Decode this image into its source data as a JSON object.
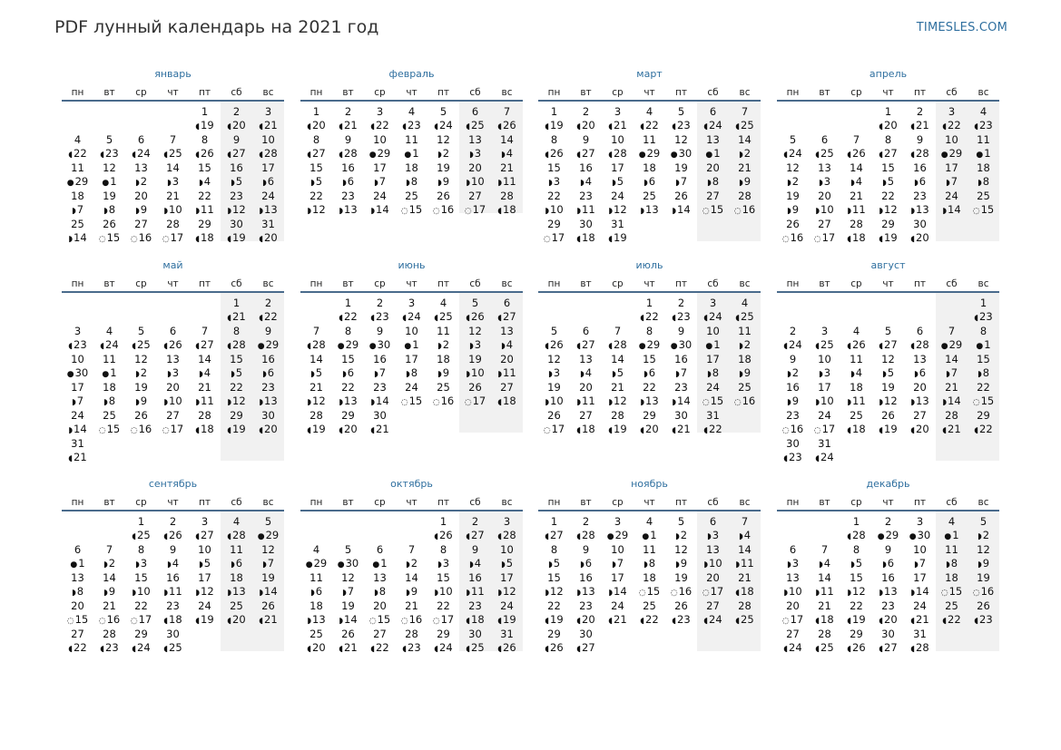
{
  "header": {
    "title": "PDF лунный календарь на 2021 год",
    "site": "TIMESLES.COM"
  },
  "weekday_labels": [
    "пн",
    "вт",
    "ср",
    "чт",
    "пт",
    "сб",
    "вс"
  ],
  "phase_icons": {
    "new": "●",
    "waxing": "◗",
    "full": "◌",
    "waning": "◖"
  },
  "months": [
    {
      "name": "январь",
      "offset": 4,
      "days": 31,
      "lunar": [
        19,
        20,
        21,
        22,
        23,
        24,
        25,
        26,
        27,
        28,
        29,
        1,
        2,
        3,
        4,
        5,
        6,
        7,
        8,
        9,
        10,
        11,
        12,
        13,
        14,
        15,
        16,
        17,
        18,
        19,
        20
      ]
    },
    {
      "name": "февраль",
      "offset": 0,
      "days": 28,
      "lunar": [
        20,
        21,
        22,
        23,
        24,
        25,
        26,
        27,
        28,
        29,
        1,
        2,
        3,
        4,
        5,
        6,
        7,
        8,
        9,
        10,
        11,
        12,
        13,
        14,
        15,
        16,
        17,
        18
      ]
    },
    {
      "name": "март",
      "offset": 0,
      "days": 31,
      "lunar": [
        19,
        20,
        21,
        22,
        23,
        24,
        25,
        26,
        27,
        28,
        29,
        30,
        1,
        2,
        3,
        4,
        5,
        6,
        7,
        8,
        9,
        10,
        11,
        12,
        13,
        14,
        15,
        16,
        17,
        18,
        19
      ]
    },
    {
      "name": "апрель",
      "offset": 3,
      "days": 30,
      "lunar": [
        20,
        21,
        22,
        23,
        24,
        25,
        26,
        27,
        28,
        29,
        1,
        2,
        3,
        4,
        5,
        6,
        7,
        8,
        9,
        10,
        11,
        12,
        13,
        14,
        15,
        16,
        17,
        18,
        19,
        20
      ]
    },
    {
      "name": "май",
      "offset": 5,
      "days": 31,
      "lunar": [
        21,
        22,
        23,
        24,
        25,
        26,
        27,
        28,
        29,
        30,
        1,
        2,
        3,
        4,
        5,
        6,
        7,
        8,
        9,
        10,
        11,
        12,
        13,
        14,
        15,
        16,
        17,
        18,
        19,
        20,
        21
      ]
    },
    {
      "name": "июнь",
      "offset": 1,
      "days": 30,
      "lunar": [
        22,
        23,
        24,
        25,
        26,
        27,
        28,
        29,
        30,
        1,
        2,
        3,
        4,
        5,
        6,
        7,
        8,
        9,
        10,
        11,
        12,
        13,
        14,
        15,
        16,
        17,
        18,
        19,
        20,
        21
      ]
    },
    {
      "name": "июль",
      "offset": 3,
      "days": 31,
      "lunar": [
        22,
        23,
        24,
        25,
        26,
        27,
        28,
        29,
        30,
        1,
        2,
        3,
        4,
        5,
        6,
        7,
        8,
        9,
        10,
        11,
        12,
        13,
        14,
        15,
        16,
        17,
        18,
        19,
        20,
        21,
        22
      ]
    },
    {
      "name": "август",
      "offset": 6,
      "days": 31,
      "lunar": [
        23,
        24,
        25,
        26,
        27,
        28,
        29,
        1,
        2,
        3,
        4,
        5,
        6,
        7,
        8,
        9,
        10,
        11,
        12,
        13,
        14,
        15,
        16,
        17,
        18,
        19,
        20,
        21,
        22,
        23,
        24
      ]
    },
    {
      "name": "сентябрь",
      "offset": 2,
      "days": 30,
      "lunar": [
        25,
        26,
        27,
        28,
        29,
        1,
        2,
        3,
        4,
        5,
        6,
        7,
        8,
        9,
        10,
        11,
        12,
        13,
        14,
        15,
        16,
        17,
        18,
        19,
        20,
        21,
        22,
        23,
        24,
        25
      ]
    },
    {
      "name": "октябрь",
      "offset": 4,
      "days": 31,
      "lunar": [
        26,
        27,
        28,
        29,
        30,
        1,
        2,
        3,
        4,
        5,
        6,
        7,
        8,
        9,
        10,
        11,
        12,
        13,
        14,
        15,
        16,
        17,
        18,
        19,
        20,
        21,
        22,
        23,
        24,
        25,
        26
      ]
    },
    {
      "name": "ноябрь",
      "offset": 0,
      "days": 30,
      "lunar": [
        27,
        28,
        29,
        1,
        2,
        3,
        4,
        5,
        6,
        7,
        8,
        9,
        10,
        11,
        12,
        13,
        14,
        15,
        16,
        17,
        18,
        19,
        20,
        21,
        22,
        23,
        24,
        25,
        26,
        27
      ]
    },
    {
      "name": "декабрь",
      "offset": 2,
      "days": 31,
      "lunar": [
        28,
        29,
        30,
        1,
        2,
        3,
        4,
        5,
        6,
        7,
        8,
        9,
        10,
        11,
        12,
        13,
        14,
        15,
        16,
        17,
        18,
        19,
        20,
        21,
        22,
        23,
        24,
        25,
        26,
        27,
        28
      ]
    }
  ]
}
